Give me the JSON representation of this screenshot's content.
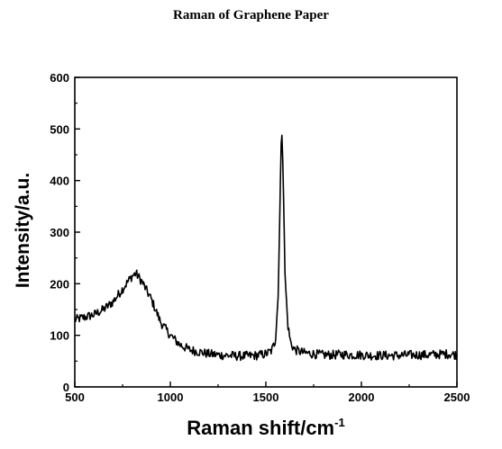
{
  "chart_data": {
    "type": "line",
    "title": "Raman of Graphene Paper",
    "xlabel": "Raman shift/cm",
    "xlabel_superscript": "-1",
    "ylabel": "Intensity/a.u.",
    "xlim": [
      500,
      2500
    ],
    "ylim": [
      0,
      600
    ],
    "x_ticks": [
      500,
      1000,
      1500,
      2000,
      2500
    ],
    "y_ticks": [
      0,
      100,
      200,
      300,
      400,
      500,
      600
    ],
    "grid": false,
    "legend": "none",
    "line_color": "#000000",
    "series": [
      {
        "x": [
          500,
          550,
          600,
          650,
          700,
          750,
          800,
          820,
          850,
          900,
          950,
          1000,
          1050,
          1100,
          1150,
          1200,
          1250,
          1300,
          1350,
          1400,
          1450,
          1500,
          1530,
          1550,
          1565,
          1575,
          1582,
          1590,
          1600,
          1615,
          1630,
          1650,
          1700,
          1750,
          1800,
          1850,
          1900,
          1950,
          2000,
          2050,
          2100,
          2150,
          2200,
          2250,
          2300,
          2350,
          2400,
          2450,
          2500
        ],
        "y": [
          130,
          135,
          140,
          150,
          165,
          190,
          215,
          220,
          205,
          170,
          125,
          100,
          82,
          72,
          68,
          64,
          62,
          61,
          60,
          60,
          61,
          64,
          70,
          90,
          180,
          380,
          508,
          420,
          220,
          120,
          85,
          72,
          66,
          64,
          62,
          62,
          63,
          62,
          62,
          61,
          61,
          61,
          61,
          62,
          62,
          62,
          63,
          64,
          62
        ]
      }
    ]
  }
}
